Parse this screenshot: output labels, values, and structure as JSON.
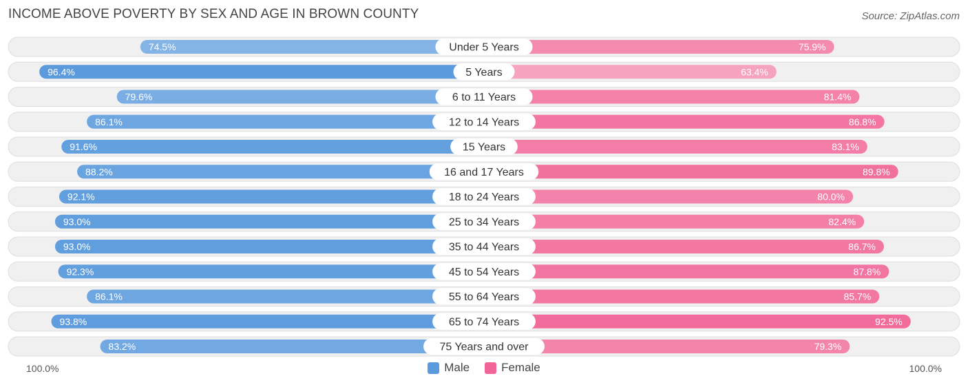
{
  "header": {
    "title": "INCOME ABOVE POVERTY BY SEX AND AGE IN BROWN COUNTY",
    "source": "Source: ZipAtlas.com"
  },
  "colors": {
    "male_strong": "#5b9bdd",
    "male_light": "#9fc3ea",
    "female_strong": "#f06595",
    "female_light": "#f7a9c4",
    "row_bg": "#f0f0f0",
    "row_border": "#dedede"
  },
  "chart_data": {
    "type": "bar",
    "orientation": "horizontal-diverging",
    "title": "INCOME ABOVE POVERTY BY SEX AND AGE IN BROWN COUNTY",
    "categories": [
      "Under 5 Years",
      "5 Years",
      "6 to 11 Years",
      "12 to 14 Years",
      "15 Years",
      "16 and 17 Years",
      "18 to 24 Years",
      "25 to 34 Years",
      "35 to 44 Years",
      "45 to 54 Years",
      "55 to 64 Years",
      "65 to 74 Years",
      "75 Years and over"
    ],
    "series": [
      {
        "name": "Male",
        "values": [
          74.5,
          96.4,
          79.6,
          86.1,
          91.6,
          88.2,
          92.1,
          93.0,
          93.0,
          92.3,
          86.1,
          93.8,
          83.2
        ]
      },
      {
        "name": "Female",
        "values": [
          75.9,
          63.4,
          81.4,
          86.8,
          83.1,
          89.8,
          80.0,
          82.4,
          86.7,
          87.8,
          85.7,
          92.5,
          79.3
        ]
      }
    ],
    "value_labels": {
      "male": [
        "74.5%",
        "96.4%",
        "79.6%",
        "86.1%",
        "91.6%",
        "88.2%",
        "92.1%",
        "93.0%",
        "93.0%",
        "92.3%",
        "86.1%",
        "93.8%",
        "83.2%"
      ],
      "female": [
        "75.9%",
        "63.4%",
        "81.4%",
        "86.8%",
        "83.1%",
        "89.8%",
        "80.0%",
        "82.4%",
        "86.7%",
        "87.8%",
        "85.7%",
        "92.5%",
        "79.3%"
      ]
    },
    "xlim": [
      0,
      100
    ],
    "axis_labels": {
      "left": "100.0%",
      "right": "100.0%"
    },
    "legend": [
      "Male",
      "Female"
    ],
    "legend_position": "bottom-center"
  }
}
